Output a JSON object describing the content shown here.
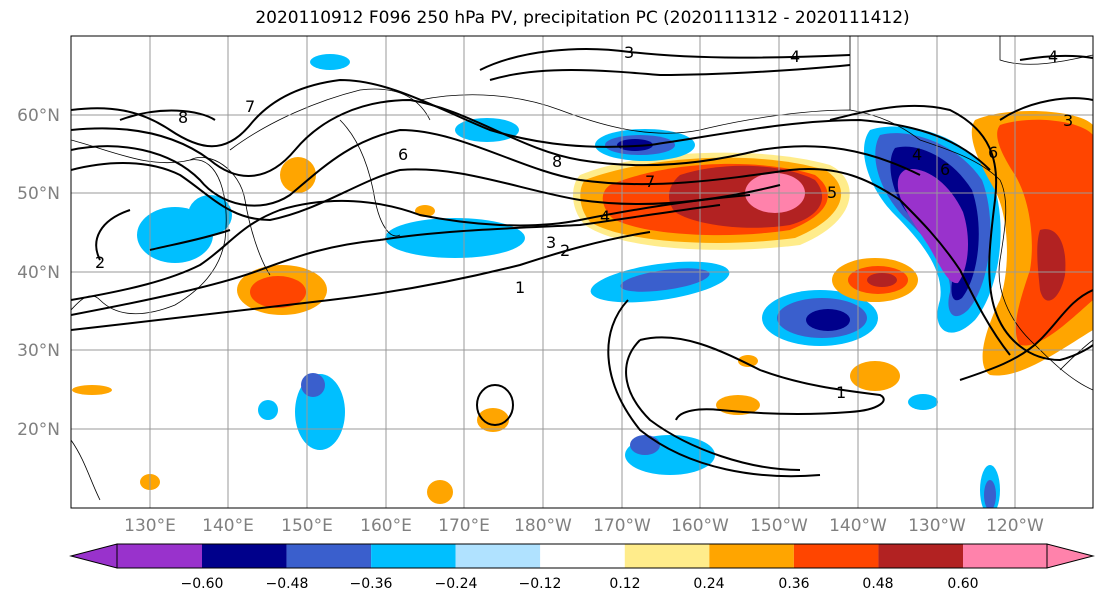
{
  "title": "2020110912 F096 250 hPa PV, precipitation PC (2020111312 - 2020111412)",
  "map": {
    "lat_labels": [
      "60°N",
      "50°N",
      "40°N",
      "30°N",
      "20°N"
    ],
    "lon_labels": [
      "130°E",
      "140°E",
      "150°E",
      "160°E",
      "170°E",
      "180°W",
      "170°W",
      "160°W",
      "150°W",
      "140°W",
      "130°W",
      "120°W"
    ],
    "contour_labels": [
      "8",
      "7",
      "6",
      "3",
      "4",
      "8",
      "7",
      "4",
      "3",
      "2",
      "1",
      "5",
      "6",
      "6",
      "4",
      "3",
      "2",
      "1",
      "4"
    ]
  },
  "colorbar": {
    "colors": [
      "#9932cc",
      "#00008b",
      "#3a5fcd",
      "#00bfff",
      "#b0e2ff",
      "#ffffff",
      "#ffec8b",
      "#ffa500",
      "#ff4500",
      "#b22222",
      "#ff82ab"
    ],
    "tick_labels": [
      "−0.60",
      "−0.48",
      "−0.36",
      "−0.24",
      "−0.12",
      "0.12",
      "0.24",
      "0.36",
      "0.48",
      "0.60"
    ]
  }
}
